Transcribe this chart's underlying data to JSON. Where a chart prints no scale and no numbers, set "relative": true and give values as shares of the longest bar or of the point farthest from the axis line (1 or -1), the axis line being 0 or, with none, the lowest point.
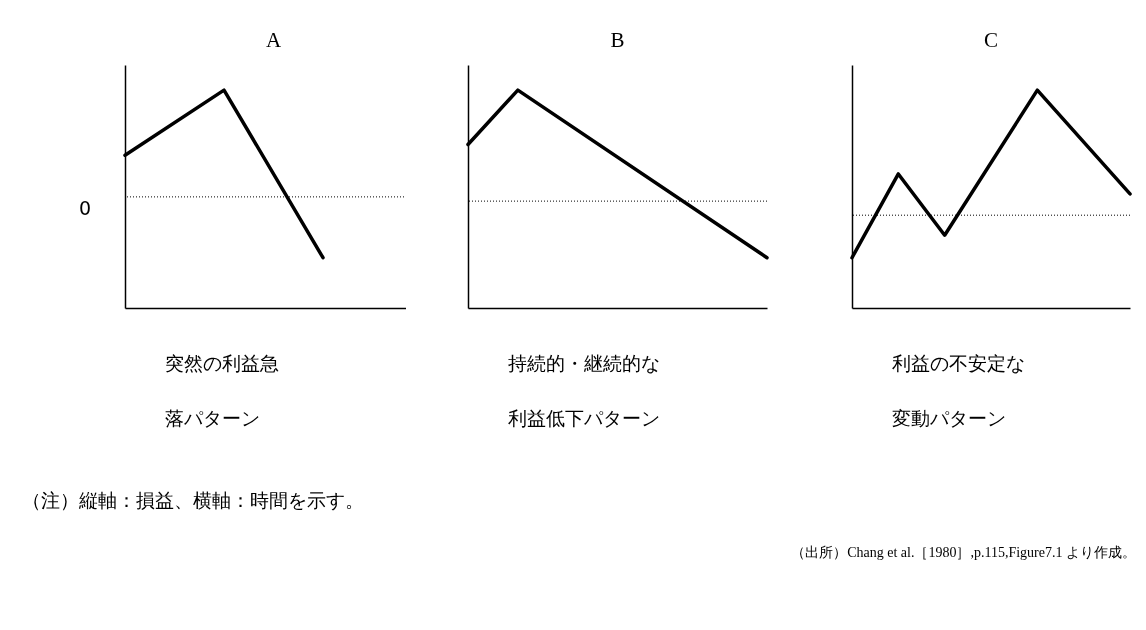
{
  "chart_data": [
    {
      "type": "line",
      "title": "A",
      "xlabel": "突然の利益急落パターン",
      "relative": true,
      "categories": [
        null,
        null,
        null,
        null
      ],
      "series": [
        {
          "color": "#000000",
          "values": [
            0.39,
            1,
            -0.57,
            null
          ]
        }
      ],
      "ref_lines": [
        {
          "axis": "y",
          "value": 0,
          "label": "0",
          "color": "#000000",
          "line_style": "dotted"
        }
      ],
      "annotations": [
        "（注）縦軸：損益、横軸：時間を示す。",
        "（出所）Chang et al.［1980］,p.115,Figure7.1 より作成。"
      ]
    },
    {
      "type": "line",
      "title": "B",
      "xlabel": "持続的・継続的な利益低下パターン",
      "relative": true,
      "categories": [
        null,
        null,
        null,
        null,
        null,
        null,
        null
      ],
      "series": [
        {
          "color": "#000000",
          "values": [
            0.51,
            1,
            null,
            null,
            null,
            null,
            -0.51
          ]
        }
      ],
      "ref_lines": [
        {
          "axis": "y",
          "value": 0,
          "color": "#000000",
          "line_style": "dotted"
        }
      ]
    },
    {
      "type": "line",
      "title": "C",
      "xlabel": "利益の不安定な変動パターン",
      "relative": true,
      "categories": [
        null,
        null,
        null,
        null,
        null,
        null,
        null
      ],
      "series": [
        {
          "color": "#000000",
          "values": [
            -0.34,
            0.33,
            -0.16,
            null,
            1,
            null,
            0.17
          ]
        }
      ],
      "ref_lines": [
        {
          "axis": "y",
          "value": 0,
          "color": "#000000",
          "line_style": "dotted"
        }
      ]
    }
  ]
}
